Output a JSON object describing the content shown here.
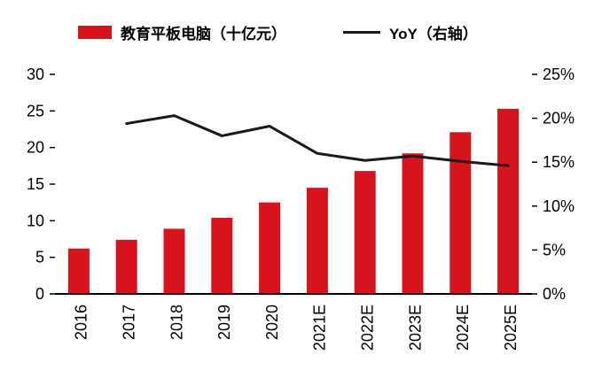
{
  "chart_data": {
    "type": "bar",
    "title": "",
    "categories": [
      "2016",
      "2017",
      "2018",
      "2019",
      "2020",
      "2021E",
      "2022E",
      "2023E",
      "2024E",
      "2025E"
    ],
    "series": [
      {
        "name": "教育平板电脑（十亿元）",
        "kind": "bar",
        "axis": "left",
        "color": "#d7141e",
        "values": [
          6.2,
          7.4,
          8.9,
          10.4,
          12.5,
          14.5,
          16.8,
          19.2,
          22.1,
          25.3
        ]
      },
      {
        "name": "YoY（右轴）",
        "kind": "line",
        "axis": "right",
        "color": "#1a1a1a",
        "values": [
          null,
          19.4,
          20.3,
          18.0,
          19.1,
          16.0,
          15.2,
          15.7,
          15.1,
          14.6
        ]
      }
    ],
    "left_axis": {
      "min": 0,
      "max": 30,
      "step": 5,
      "tick_labels": [
        "0",
        "5",
        "10",
        "15",
        "20",
        "25",
        "30"
      ]
    },
    "right_axis": {
      "min": 0,
      "max": 25,
      "step": 5,
      "tick_labels": [
        "0%",
        "5%",
        "10%",
        "15%",
        "20%",
        "25%"
      ]
    },
    "legend_position": "top",
    "grid": false,
    "xlabel": "",
    "ylabel": ""
  },
  "legend": {
    "bar_label": "教育平板电脑（十亿元）",
    "line_label": "YoY（右轴）"
  },
  "colors": {
    "bar": "#d7141e",
    "line": "#1a1a1a",
    "axis": "#000000",
    "background": "#ffffff"
  }
}
